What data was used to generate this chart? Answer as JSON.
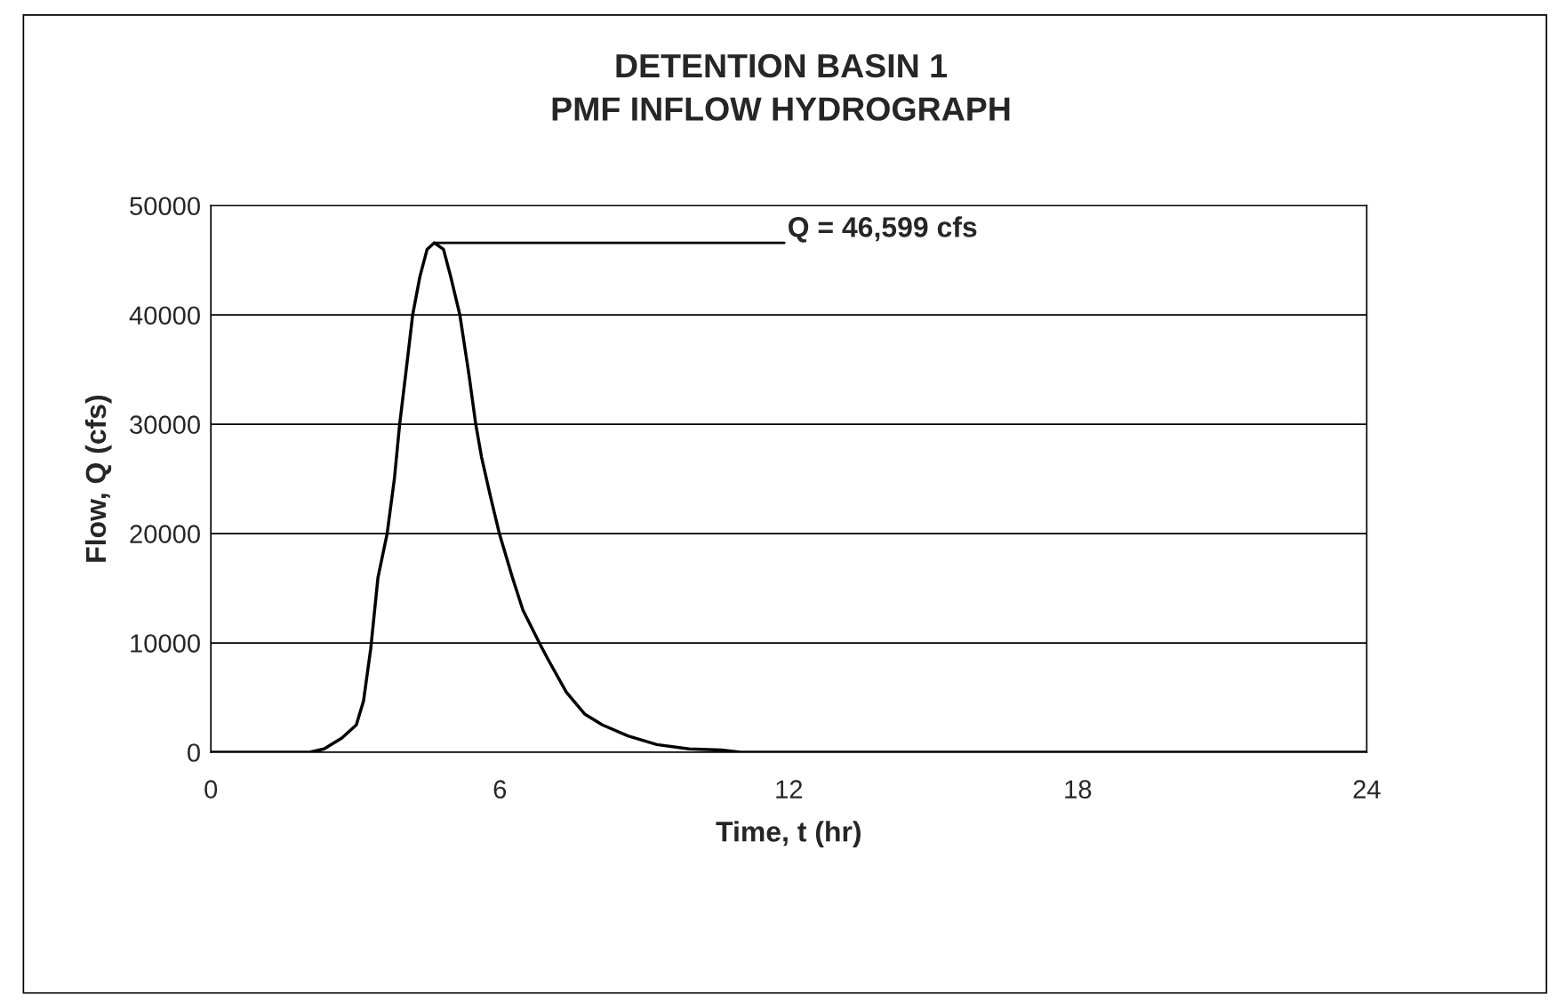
{
  "chart_data": {
    "type": "line",
    "title": "DETENTION BASIN 1\nPMF INFLOW HYDROGRAPH",
    "xlabel": "Time, t (hr)",
    "ylabel": "Flow, Q (cfs)",
    "series": [
      {
        "color": "#000000",
        "x": [
          0,
          2.05,
          2.35,
          2.72,
          3.02,
          3.17,
          3.32,
          3.47,
          3.66,
          3.81,
          3.92,
          4.07,
          4.19,
          4.34,
          4.49,
          4.64,
          4.83,
          4.98,
          5.17,
          5.36,
          5.5,
          5.62,
          5.8,
          5.99,
          6.26,
          6.48,
          6.82,
          7.0,
          7.38,
          7.76,
          8.13,
          8.66,
          9.26,
          9.93,
          10.6,
          11.0,
          24
        ],
        "values": [
          0,
          0,
          300,
          1300,
          2500,
          4700,
          9500,
          16000,
          20000,
          25000,
          30000,
          35500,
          40000,
          43500,
          46000,
          46599,
          46000,
          43500,
          40000,
          34500,
          30000,
          27000,
          23500,
          20000,
          16000,
          13000,
          10000,
          8500,
          5500,
          3500,
          2500,
          1500,
          700,
          300,
          200,
          0,
          0
        ]
      }
    ],
    "annotations": [
      {
        "text": "Q = 46,599 cfs",
        "x": 4.64,
        "y": 46599
      }
    ],
    "xlim": [
      0,
      24
    ],
    "xticks": [
      0,
      6,
      12,
      18,
      24
    ],
    "ylim": [
      0,
      50000
    ],
    "yticks": [
      0,
      10000,
      20000,
      30000,
      40000,
      50000
    ],
    "grid": "y",
    "marker": "none",
    "line_style": "solid"
  }
}
